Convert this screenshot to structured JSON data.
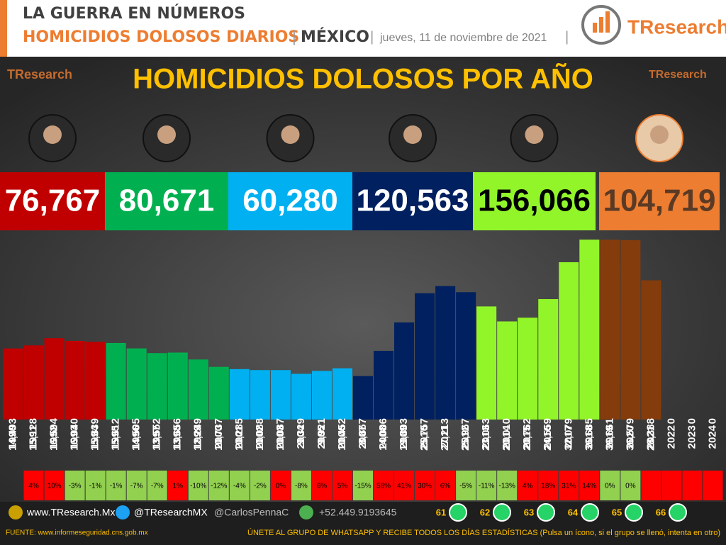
{
  "header": {
    "line1": "LA GUERRA EN NÚMEROS",
    "line2a": "HOMICIDIOS DOLOSOS DIARIOS",
    "line2b": "MÉXICO",
    "date": "jueves, 11 de noviembre de 2021",
    "logo": "TResearch"
  },
  "presidencies": [
    {
      "total": "76,767",
      "color": "#c00000",
      "text_color": "#ffffff"
    },
    {
      "total": "80,671",
      "color": "#00b050",
      "text_color": "#ffffff"
    },
    {
      "total": "60,280",
      "color": "#00b0f0",
      "text_color": "#ffffff"
    },
    {
      "total": "120,563",
      "color": "#002060",
      "text_color": "#ffffff"
    },
    {
      "total": "156,066",
      "color": "#92f52a",
      "text_color": "#000000"
    },
    {
      "total": "104,719",
      "color": "#ed7d31",
      "text_color": "#5a3a25"
    }
  ],
  "chart_data": {
    "type": "bar",
    "title": "HOMICIDIOS DOLOSOS POR AÑO",
    "categories": [
      "1990",
      "1991",
      "1992",
      "1993",
      "1994",
      "1995",
      "1996",
      "1997",
      "1998",
      "1999",
      "2000",
      "2001",
      "2002",
      "2003",
      "2004",
      "2005",
      "2006",
      "2007",
      "2008",
      "2009",
      "2010",
      "2011",
      "2012",
      "2013",
      "2014",
      "2015",
      "2016",
      "2017",
      "2018",
      "2019",
      "2020",
      "2021",
      "2022",
      "2023",
      "2024"
    ],
    "values": [
      14493,
      15128,
      16594,
      16040,
      15839,
      15612,
      14505,
      13552,
      13656,
      12249,
      10737,
      10285,
      10088,
      10087,
      9329,
      9921,
      10452,
      8867,
      14006,
      19803,
      25757,
      27213,
      25967,
      23063,
      20010,
      20762,
      24559,
      32079,
      36685,
      36661,
      36579,
      28388,
      0,
      0,
      0
    ],
    "value_labels": [
      "14,493",
      "15,128",
      "16,594",
      "16,040",
      "15,839",
      "15,612",
      "14,505",
      "13,552",
      "13,656",
      "12,249",
      "10,737",
      "10,285",
      "10,088",
      "10,087",
      "9,329",
      "9,921",
      "10,452",
      "8,867",
      "14,006",
      "19,803",
      "25,757",
      "27,213",
      "25,967",
      "23,063",
      "20,010",
      "20,762",
      "24,559",
      "32,079",
      "36,685",
      "36,661",
      "36,579",
      "28,388",
      "0",
      "0",
      "0"
    ],
    "colors": [
      "#c00000",
      "#c00000",
      "#c00000",
      "#c00000",
      "#c00000",
      "#00b050",
      "#00b050",
      "#00b050",
      "#00b050",
      "#00b050",
      "#00b050",
      "#00b0f0",
      "#00b0f0",
      "#00b0f0",
      "#00b0f0",
      "#00b0f0",
      "#00b0f0",
      "#002060",
      "#002060",
      "#002060",
      "#002060",
      "#002060",
      "#002060",
      "#92f52a",
      "#92f52a",
      "#92f52a",
      "#92f52a",
      "#92f52a",
      "#92f52a",
      "#843c0c",
      "#843c0c",
      "#843c0c",
      "#843c0c",
      "#843c0c",
      "#843c0c"
    ],
    "ylim": [
      0,
      38000
    ],
    "change_labels": [
      null,
      "4%",
      "10%",
      "-3%",
      "-1%",
      "-1%",
      "-7%",
      "-7%",
      "1%",
      "-10%",
      "-12%",
      "-4%",
      "-2%",
      "0%",
      "-8%",
      "6%",
      "5%",
      "-15%",
      "58%",
      "41%",
      "30%",
      "6%",
      "-5%",
      "-11%",
      "-13%",
      "4%",
      "18%",
      "31%",
      "14%",
      "0%",
      "0%",
      null,
      null,
      null,
      null
    ],
    "change_colors": [
      "#ff0000",
      "#ff0000",
      "#ff0000",
      "#92d050",
      "#92d050",
      "#92d050",
      "#92d050",
      "#92d050",
      "#ff0000",
      "#92d050",
      "#92d050",
      "#92d050",
      "#92d050",
      "#ff0000",
      "#92d050",
      "#ff0000",
      "#ff0000",
      "#92d050",
      "#ff0000",
      "#ff0000",
      "#ff0000",
      "#ff0000",
      "#92d050",
      "#92d050",
      "#92d050",
      "#ff0000",
      "#ff0000",
      "#ff0000",
      "#ff0000",
      "#92d050",
      "#92d050",
      "#ff0000",
      "#ff0000",
      "#ff0000",
      "#ff0000"
    ]
  },
  "footer": {
    "web": "www.TResearch.Mx",
    "twitter": "@TResearchMX",
    "twitter2": "@CarlosPennaC",
    "phone": "+52.449.9193645",
    "groups": [
      "61",
      "62",
      "63",
      "64",
      "65",
      "66"
    ],
    "source": "FUENTE: www.informeseguridad.cns.gob.mx",
    "join": "ÚNETE AL GRUPO DE WHATSAPP Y RECIBE TODOS LOS DÍAS ESTADÍSTICAS (Pulsa un ícono, si el grupo se llenó, intenta en otro)"
  }
}
